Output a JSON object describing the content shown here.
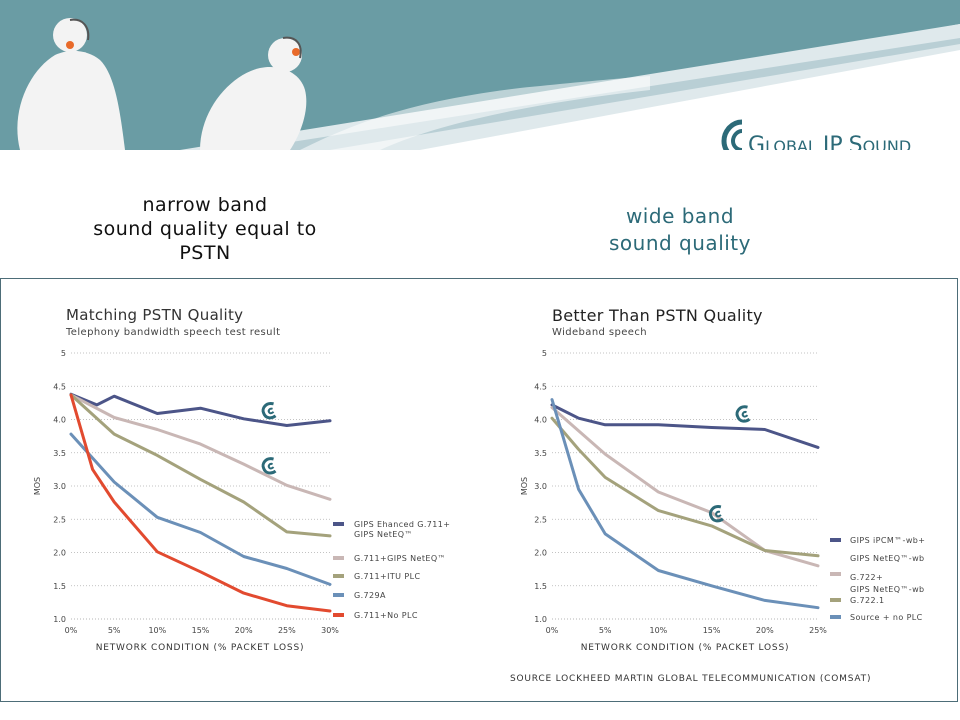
{
  "brand": {
    "name": "GLOBAL IP SOUND",
    "g": "G",
    "lobal": "LOBAL",
    "ip": "IP",
    "s": "S",
    "ound": "OUND"
  },
  "headlines": {
    "narrow": [
      "narrow band",
      "sound quality equal to",
      "PSTN"
    ],
    "wide": [
      "wide band",
      "sound quality"
    ]
  },
  "colors": {
    "banner_teal": "#6a9ca4",
    "blue_dark": "#4c5588",
    "pink": "#c9b7b5",
    "olive": "#a4a27c",
    "blue": "#6b90b8",
    "red": "#e24a2f"
  },
  "chart_data": [
    {
      "type": "line",
      "title": "Matching PSTN Quality",
      "subtitle": "Telephony bandwidth speech test result",
      "xlabel": "NETWORK CONDITION (% PACKET LOSS)",
      "ylabel": "MOS",
      "xlim": [
        0,
        30
      ],
      "ylim": [
        1.0,
        5.0
      ],
      "xticks": [
        0,
        5,
        10,
        15,
        20,
        25,
        30
      ],
      "xtick_labels": [
        "0%",
        "5%",
        "10%",
        "15%",
        "20%",
        "25%",
        "30%"
      ],
      "yticks": [
        1.0,
        1.5,
        2.0,
        2.5,
        3.0,
        3.5,
        4.0,
        4.5,
        5
      ],
      "ytick_labels": [
        "1.0",
        "1.5",
        "2.0",
        "2.5",
        "3.0",
        "3.5",
        "4.0",
        "4.5",
        "5"
      ],
      "legend_position": "right",
      "series": [
        {
          "name": "GIPS Ehanced G.711+ GIPS NetEQ™",
          "legend_lines": [
            "GIPS Ehanced G.711+",
            "GIPS NetEQ™"
          ],
          "color": "#4c5588",
          "x": [
            0,
            3,
            5,
            10,
            15,
            20,
            25,
            30
          ],
          "y": [
            4.38,
            4.22,
            4.35,
            4.09,
            4.17,
            4.01,
            3.91,
            3.98
          ]
        },
        {
          "name": "G.711+GIPS NetEQ™",
          "legend_lines": [
            "G.711+GIPS NetEQ™"
          ],
          "color": "#c9b7b5",
          "x": [
            0,
            5,
            10,
            15,
            20,
            25,
            30
          ],
          "y": [
            4.37,
            4.03,
            3.85,
            3.63,
            3.33,
            3.01,
            2.8
          ]
        },
        {
          "name": "G.711+ITU PLC",
          "legend_lines": [
            "G.711+ITU PLC"
          ],
          "color": "#a4a27c",
          "x": [
            0,
            5,
            10,
            15,
            20,
            25,
            30
          ],
          "y": [
            4.37,
            3.78,
            3.46,
            3.1,
            2.76,
            2.31,
            2.25
          ]
        },
        {
          "name": "G.729A",
          "legend_lines": [
            "G.729A"
          ],
          "color": "#6b90b8",
          "x": [
            0,
            5,
            10,
            15,
            20,
            25,
            30
          ],
          "y": [
            3.78,
            3.06,
            2.53,
            2.3,
            1.94,
            1.76,
            1.52
          ]
        },
        {
          "name": "G.711+No PLC",
          "legend_lines": [
            "G.711+No PLC"
          ],
          "color": "#e24a2f",
          "x": [
            0,
            2.5,
            5,
            10,
            15,
            20,
            25,
            30
          ],
          "y": [
            4.37,
            3.25,
            2.76,
            2.01,
            1.71,
            1.39,
            1.2,
            1.12
          ]
        }
      ],
      "markers": [
        {
          "x": 23,
          "y": 4.13
        },
        {
          "x": 23,
          "y": 3.3
        }
      ]
    },
    {
      "type": "line",
      "title": "Better Than PSTN Quality",
      "subtitle": "Wideband speech",
      "xlabel": "NETWORK CONDITION (% PACKET LOSS)",
      "ylabel": "MOS",
      "xlim": [
        0,
        25
      ],
      "ylim": [
        1.0,
        5.0
      ],
      "xticks": [
        0,
        5,
        10,
        15,
        20,
        25
      ],
      "xtick_labels": [
        "0%",
        "5%",
        "10%",
        "15%",
        "20%",
        "25%"
      ],
      "yticks": [
        1.0,
        1.5,
        2.0,
        2.5,
        3.0,
        3.5,
        4.0,
        4.5,
        5
      ],
      "ytick_labels": [
        "1.0",
        "1.5",
        "2.0",
        "2.5",
        "3.0",
        "3.5",
        "4.0",
        "4.5",
        "5"
      ],
      "legend_position": "right",
      "series": [
        {
          "name": "GIPS iPCM™-wb+ GIPS NetEQ™-wb",
          "legend_lines": [
            "GIPS iPCM™-wb+",
            "GIPS NetEQ™-wb"
          ],
          "color": "#4c5588",
          "x": [
            0,
            2.5,
            5,
            10,
            15,
            20,
            25
          ],
          "y": [
            4.22,
            4.02,
            3.92,
            3.92,
            3.88,
            3.85,
            3.58
          ]
        },
        {
          "name": "G.722+ GIPS NetEQ™-wb",
          "legend_lines": [
            "G.722+",
            "GIPS NetEQ™-wb"
          ],
          "color": "#c9b7b5",
          "x": [
            0,
            5,
            10,
            15,
            20,
            25
          ],
          "y": [
            4.18,
            3.48,
            2.91,
            2.6,
            2.03,
            1.8
          ]
        },
        {
          "name": "G.722.1",
          "legend_lines": [
            "G.722.1"
          ],
          "color": "#a4a27c",
          "x": [
            0,
            2.5,
            5,
            10,
            15,
            20,
            25
          ],
          "y": [
            4.02,
            3.55,
            3.13,
            2.63,
            2.4,
            2.03,
            1.95
          ]
        },
        {
          "name": "Source + no PLC",
          "legend_lines": [
            "Source + no PLC"
          ],
          "color": "#6b90b8",
          "x": [
            0,
            2.5,
            5,
            10,
            15,
            20,
            25
          ],
          "y": [
            4.3,
            2.95,
            2.28,
            1.73,
            1.5,
            1.28,
            1.17
          ]
        }
      ],
      "markers": [
        {
          "x": 18,
          "y": 4.08
        },
        {
          "x": 15.5,
          "y": 2.58
        }
      ]
    }
  ],
  "source_note": "SOURCE LOCKHEED MARTIN GLOBAL TELECOMMUNICATION (COMSAT)"
}
